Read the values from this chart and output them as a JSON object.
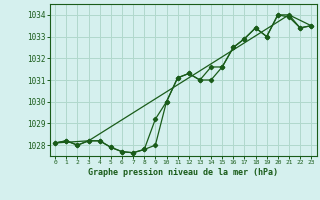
{
  "title": "Graphe pression niveau de la mer (hPa)",
  "background_color": "#d5f0ee",
  "grid_color": "#b0d8cc",
  "line_color": "#1a5c1a",
  "marker_color": "#1a5c1a",
  "xlim": [
    -0.5,
    23.5
  ],
  "ylim": [
    1027.5,
    1034.5
  ],
  "xticks": [
    0,
    1,
    2,
    3,
    4,
    5,
    6,
    7,
    8,
    9,
    10,
    11,
    12,
    13,
    14,
    15,
    16,
    17,
    18,
    19,
    20,
    21,
    22,
    23
  ],
  "yticks": [
    1028,
    1029,
    1030,
    1031,
    1032,
    1033,
    1034
  ],
  "series1_x": [
    0,
    1,
    2,
    3,
    4,
    5,
    6,
    7,
    8,
    9,
    10,
    11,
    12,
    13,
    14,
    15,
    16,
    17,
    18,
    19,
    20,
    21,
    22,
    23
  ],
  "series1_y": [
    1028.1,
    1028.2,
    1028.0,
    1028.2,
    1028.2,
    1027.9,
    1027.7,
    1027.65,
    1027.8,
    1028.0,
    1030.0,
    1031.1,
    1031.3,
    1031.0,
    1031.0,
    1031.6,
    1032.5,
    1032.9,
    1033.4,
    1033.0,
    1034.0,
    1033.9,
    1033.4,
    1033.5
  ],
  "series2_x": [
    0,
    1,
    2,
    3,
    4,
    5,
    6,
    7,
    8,
    9,
    10,
    11,
    12,
    13,
    14,
    15,
    16,
    17,
    18,
    19,
    20,
    21,
    22,
    23
  ],
  "series2_y": [
    1028.1,
    1028.2,
    1028.0,
    1028.2,
    1028.2,
    1027.9,
    1027.7,
    1027.65,
    1027.8,
    1029.2,
    1030.0,
    1031.1,
    1031.3,
    1031.0,
    1031.6,
    1031.6,
    1032.5,
    1032.9,
    1033.4,
    1033.0,
    1034.0,
    1034.0,
    1033.4,
    1033.5
  ],
  "series3_x": [
    0,
    3,
    21,
    23
  ],
  "series3_y": [
    1028.1,
    1028.2,
    1034.0,
    1033.5
  ]
}
